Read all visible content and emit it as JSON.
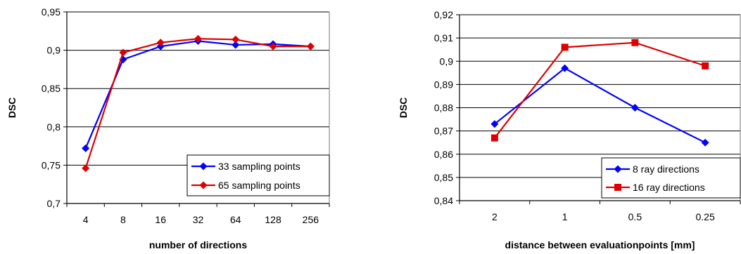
{
  "chart_data": [
    {
      "type": "line",
      "title": "",
      "xlabel": "number of directions",
      "ylabel": "DSC",
      "categories": [
        "4",
        "8",
        "16",
        "32",
        "64",
        "128",
        "256"
      ],
      "ylim": [
        0.7,
        0.95
      ],
      "yticks": [
        "0,7",
        "0,75",
        "0,8",
        "0,85",
        "0,9",
        "0,95"
      ],
      "ytick_values": [
        0.7,
        0.75,
        0.8,
        0.85,
        0.9,
        0.95
      ],
      "grid": "horizontal",
      "legend_position": "bottom-right",
      "series": [
        {
          "name": "33 sampling points",
          "color": "#0000ff",
          "marker": "diamond",
          "values": [
            0.772,
            0.888,
            0.905,
            0.912,
            0.907,
            0.908,
            0.905
          ]
        },
        {
          "name": "65 sampling points",
          "color": "#dd0000",
          "marker": "diamond",
          "values": [
            0.746,
            0.897,
            0.91,
            0.915,
            0.914,
            0.905,
            0.905
          ]
        }
      ]
    },
    {
      "type": "line",
      "title": "",
      "xlabel": "distance between evaluationpoints [mm]",
      "ylabel": "DSC",
      "categories": [
        "2",
        "1",
        "0.5",
        "0.25"
      ],
      "ylim": [
        0.84,
        0.92
      ],
      "yticks": [
        "0,84",
        "0,85",
        "0,86",
        "0,87",
        "0,88",
        "0,89",
        "0,9",
        "0,91",
        "0,92"
      ],
      "ytick_values": [
        0.84,
        0.85,
        0.86,
        0.87,
        0.88,
        0.89,
        0.9,
        0.91,
        0.92
      ],
      "grid": "horizontal",
      "legend_position": "bottom-right",
      "series": [
        {
          "name": "8 ray directions",
          "color": "#0000ff",
          "marker": "diamond",
          "values": [
            0.873,
            0.897,
            0.88,
            0.865
          ]
        },
        {
          "name": "16 ray directions",
          "color": "#dd0000",
          "marker": "square",
          "values": [
            0.867,
            0.906,
            0.908,
            0.898
          ]
        }
      ]
    }
  ]
}
